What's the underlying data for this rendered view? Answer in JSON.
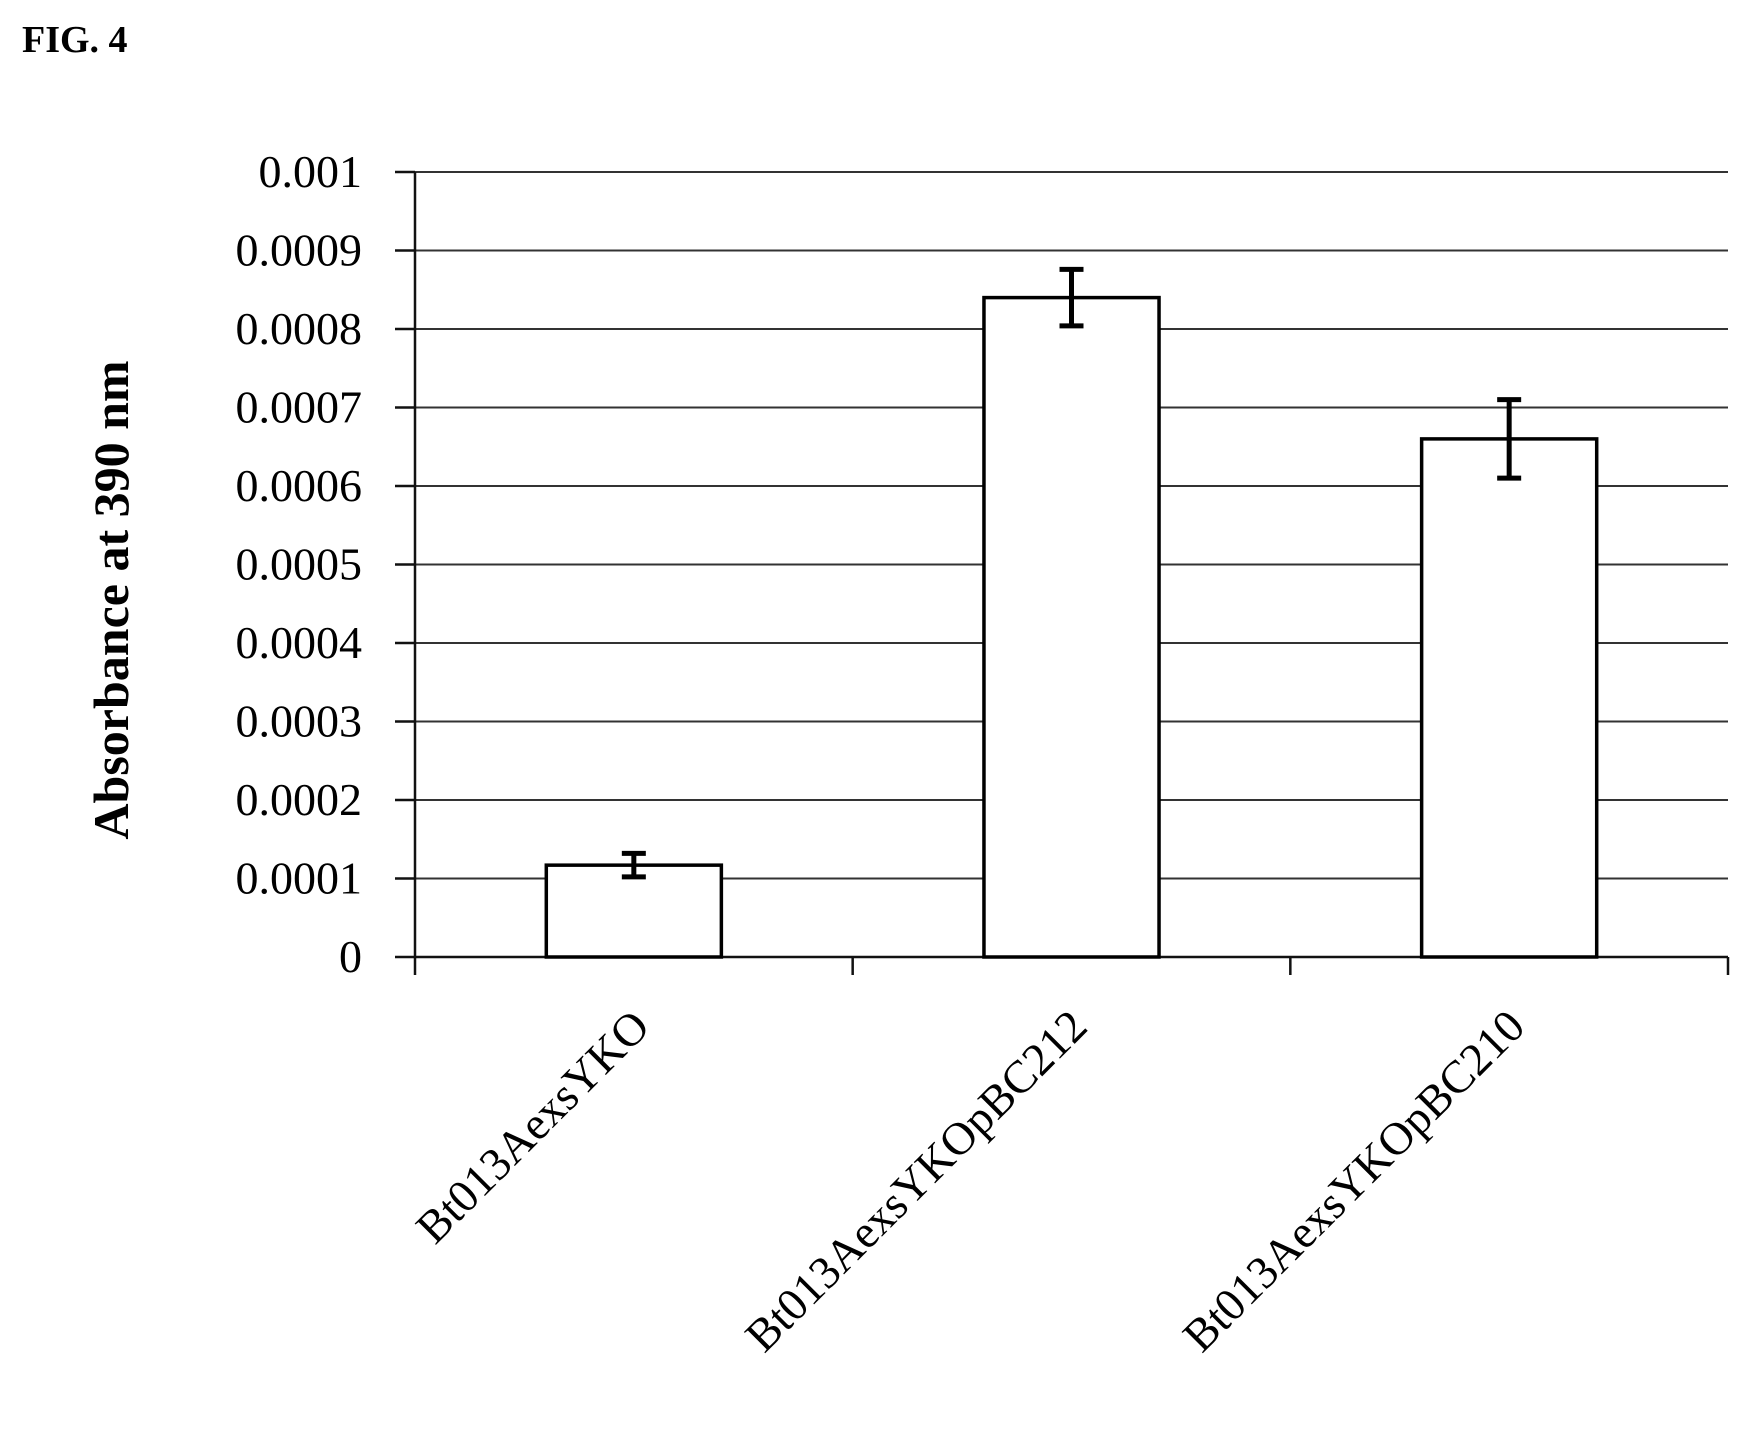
{
  "figure_label": "FIG. 4",
  "chart_data": {
    "type": "bar",
    "categories": [
      "Bt013AexsYKO",
      "Bt013AexsYKOpBC212",
      "Bt013AexsYKOpBC210"
    ],
    "values": [
      0.000117,
      0.00084,
      0.00066
    ],
    "error": [
      1.5e-05,
      3.6e-05,
      5e-05
    ],
    "ylabel": "Absorbance at 390 nm",
    "ylim": [
      0,
      0.001
    ],
    "yticks": [
      0,
      0.0001,
      0.0002,
      0.0003,
      0.0004,
      0.0005,
      0.0006,
      0.0007,
      0.0008,
      0.0009,
      0.001
    ],
    "ytick_labels": [
      "0",
      "0.0001",
      "0.0002",
      "0.0003",
      "0.0004",
      "0.0005",
      "0.0006",
      "0.0007",
      "0.0008",
      "0.0009",
      "0.001"
    ],
    "grid": true,
    "bar_color": "#ffffff",
    "edge_color": "#000000"
  }
}
